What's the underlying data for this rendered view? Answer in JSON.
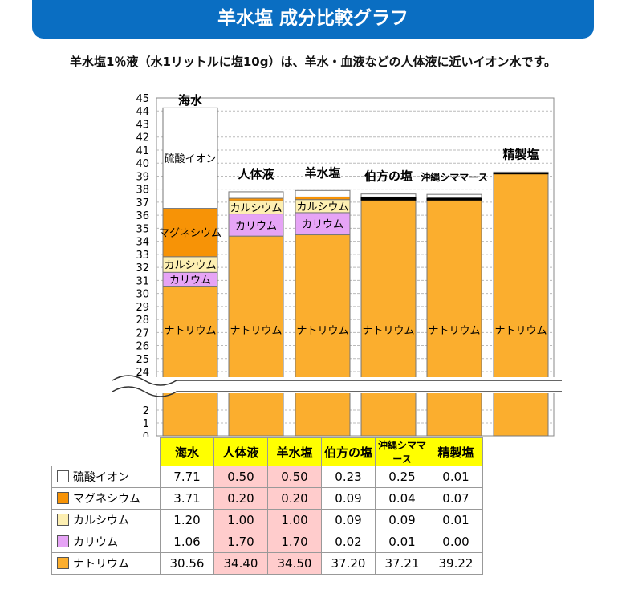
{
  "header": {
    "title": "羊水塩 成分比較グラフ"
  },
  "subtitle": "羊水塩1％液（水1リットルに塩10g）は、羊水・血液などの人体液に近いイオン水です。",
  "chart_data": {
    "type": "bar",
    "stacked": true,
    "categories": [
      "海水",
      "人体液",
      "羊水塩",
      "伯方の塩",
      "沖縄シママース",
      "精製塩"
    ],
    "series": [
      {
        "name": "ナトリウム",
        "color": "#fbae2e",
        "values": [
          30.56,
          34.4,
          34.5,
          37.2,
          37.21,
          39.22
        ]
      },
      {
        "name": "カリウム",
        "color": "#e6a4f6",
        "values": [
          1.06,
          1.7,
          1.7,
          0.02,
          0.01,
          0.0
        ]
      },
      {
        "name": "カルシウム",
        "color": "#fdefb2",
        "values": [
          1.2,
          1.0,
          1.0,
          0.09,
          0.09,
          0.01
        ]
      },
      {
        "name": "マグネシウム",
        "color": "#f79306",
        "values": [
          3.71,
          0.2,
          0.2,
          0.09,
          0.04,
          0.07
        ]
      },
      {
        "name": "硫酸イオン",
        "color": "#ffffff",
        "values": [
          7.71,
          0.5,
          0.5,
          0.23,
          0.25,
          0.01
        ]
      }
    ],
    "yticks_upper": [
      24,
      25,
      26,
      27,
      28,
      29,
      30,
      31,
      32,
      33,
      34,
      35,
      36,
      37,
      38,
      39,
      40,
      41,
      42,
      43,
      44,
      45
    ],
    "yticks_lower": [
      0,
      1,
      2
    ],
    "ylim": [
      0,
      45
    ],
    "axis_break": [
      3,
      23
    ],
    "grid": true,
    "table_values": [
      [
        "7.71",
        "0.50",
        "0.50",
        "0.23",
        "0.25",
        "0.01"
      ],
      [
        "3.71",
        "0.20",
        "0.20",
        "0.09",
        "0.04",
        "0.07"
      ],
      [
        "1.20",
        "1.00",
        "1.00",
        "0.09",
        "0.09",
        "0.01"
      ],
      [
        "1.06",
        "1.70",
        "1.70",
        "0.02",
        "0.01",
        "0.00"
      ],
      [
        "30.56",
        "34.40",
        "34.50",
        "37.20",
        "37.21",
        "39.22"
      ]
    ]
  }
}
